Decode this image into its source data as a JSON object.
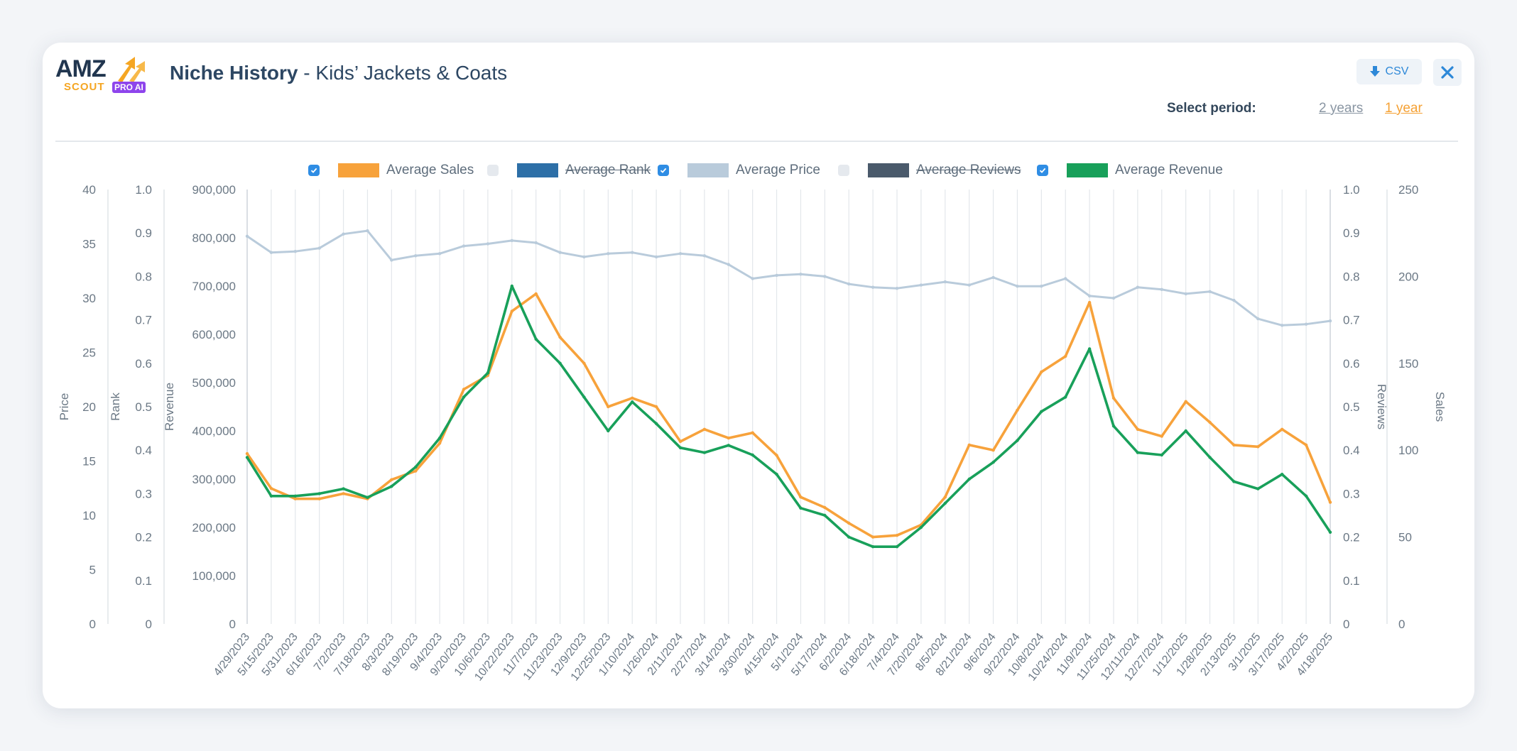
{
  "header": {
    "logo": {
      "amz": "AMZ",
      "scout": "SCOUT",
      "pro": "PRO AI"
    },
    "title_main": "Niche History",
    "title_sep": " - ",
    "title_niche": "Kids’ Jackets & Coats",
    "csv_label": "CSV",
    "select_period_label": "Select period:",
    "period_2y": "2 years",
    "period_1y": "1 year"
  },
  "legend": [
    {
      "label": "Average Sales",
      "color": "#f7a23b",
      "checked": true
    },
    {
      "label": "Average Rank",
      "color": "#2d6fa7",
      "checked": false
    },
    {
      "label": "Average Price",
      "color": "#b9cbdb",
      "checked": true
    },
    {
      "label": "Average Reviews",
      "color": "#4a5a6b",
      "checked": false
    },
    {
      "label": "Average Revenue",
      "color": "#18a05a",
      "checked": true
    }
  ],
  "chart_data": {
    "type": "line",
    "axes": {
      "price": {
        "label": "Price",
        "ticks": [
          "0",
          "5",
          "10",
          "15",
          "20",
          "25",
          "30",
          "35",
          "40"
        ],
        "range": [
          0,
          40
        ]
      },
      "rank": {
        "label": "Rank",
        "ticks": [
          "0",
          "0.1",
          "0.2",
          "0.3",
          "0.4",
          "0.5",
          "0.6",
          "0.7",
          "0.8",
          "0.9",
          "1.0"
        ],
        "range": [
          0,
          1
        ]
      },
      "revenue": {
        "label": "Revenue",
        "ticks": [
          "0",
          "100,000",
          "200,000",
          "300,000",
          "400,000",
          "500,000",
          "600,000",
          "700,000",
          "800,000",
          "900,000"
        ],
        "range": [
          0,
          900000
        ]
      },
      "reviews": {
        "label": "Reviews",
        "ticks": [
          "0",
          "0.1",
          "0.2",
          "0.3",
          "0.4",
          "0.5",
          "0.6",
          "0.7",
          "0.8",
          "0.9",
          "1.0"
        ],
        "range": [
          0,
          1
        ]
      },
      "sales": {
        "label": "Sales",
        "ticks": [
          "0",
          "50",
          "100",
          "150",
          "200",
          "250"
        ],
        "range": [
          0,
          250
        ]
      }
    },
    "x_labels": [
      "4/29/2023",
      "5/15/2023",
      "5/31/2023",
      "6/16/2023",
      "7/2/2023",
      "7/18/2023",
      "8/3/2023",
      "8/19/2023",
      "9/4/2023",
      "9/20/2023",
      "10/6/2023",
      "10/22/2023",
      "11/7/2023",
      "11/23/2023",
      "12/9/2023",
      "12/25/2023",
      "1/10/2024",
      "1/26/2024",
      "2/11/2024",
      "2/27/2024",
      "3/14/2024",
      "3/30/2024",
      "4/15/2024",
      "5/1/2024",
      "5/17/2024",
      "6/2/2024",
      "6/18/2024",
      "7/4/2024",
      "7/20/2024",
      "8/5/2024",
      "8/21/2024",
      "9/6/2024",
      "9/22/2024",
      "10/8/2024",
      "10/24/2024",
      "11/9/2024",
      "11/25/2024",
      "12/11/2024",
      "12/27/2024",
      "1/12/2025",
      "1/28/2025",
      "2/13/2025",
      "3/1/2025",
      "3/17/2025",
      "4/2/2025",
      "4/18/2025"
    ],
    "series": [
      {
        "name": "Average Price",
        "axis": "price",
        "values": [
          35.7,
          34.2,
          34.3,
          34.6,
          35.9,
          36.2,
          33.5,
          33.9,
          34.1,
          34.8,
          35.0,
          35.3,
          35.1,
          34.2,
          33.8,
          34.1,
          34.2,
          33.8,
          34.1,
          33.9,
          33.1,
          31.8,
          32.1,
          32.2,
          32.0,
          31.3,
          31.0,
          30.9,
          31.2,
          31.5,
          31.2,
          31.9,
          31.1,
          31.1,
          31.8,
          30.2,
          30.0,
          31.0,
          30.8,
          30.4,
          30.6,
          29.8,
          28.1,
          27.5,
          27.6,
          27.9
        ]
      },
      {
        "name": "Average Sales",
        "axis": "sales",
        "values": [
          98,
          78,
          72,
          72,
          75,
          72,
          83,
          88,
          104,
          135,
          143,
          180,
          190,
          165,
          150,
          125,
          130,
          125,
          105,
          112,
          107,
          110,
          97,
          73,
          67,
          58,
          50,
          51,
          57,
          73,
          103,
          100,
          123,
          145,
          154,
          185,
          130,
          112,
          108,
          128,
          116,
          103,
          102,
          112,
          103,
          70
        ]
      },
      {
        "name": "Average Revenue",
        "axis": "revenue",
        "values": [
          345000,
          265000,
          265000,
          270000,
          280000,
          262000,
          285000,
          325000,
          385000,
          470000,
          520000,
          700000,
          590000,
          540000,
          470000,
          400000,
          460000,
          415000,
          365000,
          355000,
          370000,
          350000,
          310000,
          240000,
          225000,
          180000,
          160000,
          160000,
          200000,
          250000,
          300000,
          335000,
          380000,
          440000,
          470000,
          570000,
          410000,
          355000,
          350000,
          400000,
          345000,
          295000,
          280000,
          310000,
          265000,
          190000
        ]
      }
    ],
    "visible_series": [
      "Average Sales",
      "Average Price",
      "Average Revenue"
    ]
  }
}
